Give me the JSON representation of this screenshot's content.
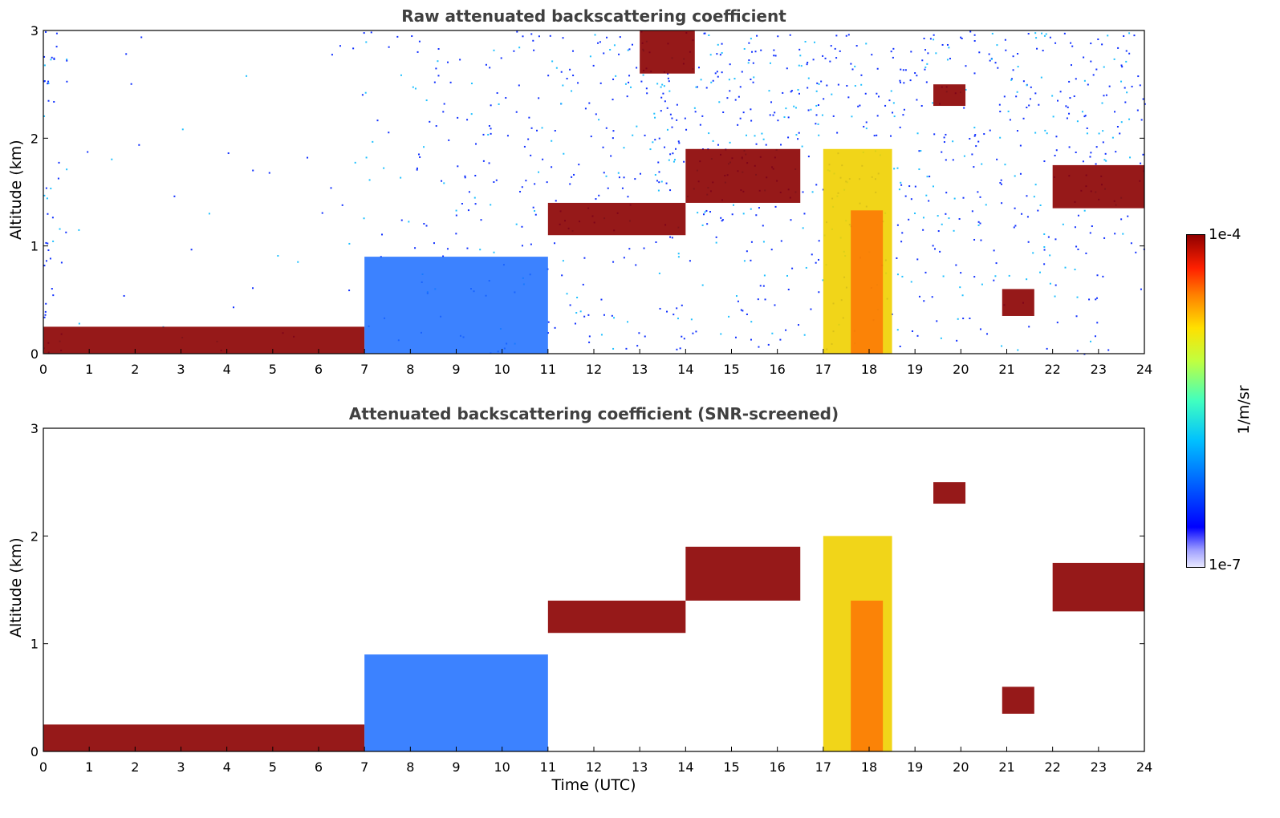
{
  "chart_data": [
    {
      "type": "heatmap",
      "title": "Raw attenuated backscattering coefficient",
      "xlabel": "",
      "ylabel": "Altitude (km)",
      "xlim": [
        0,
        24
      ],
      "ylim": [
        0,
        3
      ],
      "x_ticks": [
        "0",
        "1",
        "2",
        "3",
        "4",
        "5",
        "6",
        "7",
        "8",
        "9",
        "10",
        "11",
        "12",
        "13",
        "14",
        "15",
        "16",
        "17",
        "18",
        "19",
        "20",
        "21",
        "22",
        "23",
        "24"
      ],
      "y_ticks": [
        "0",
        "1",
        "2",
        "3"
      ],
      "features": [
        {
          "name": "boundary-layer",
          "x": [
            0,
            7
          ],
          "y": [
            0,
            0.25
          ],
          "level": "high"
        },
        {
          "name": "elevated-aerosol",
          "x": [
            7,
            11
          ],
          "y": [
            0,
            0.9
          ],
          "level": "medium"
        },
        {
          "name": "cloud-11-14",
          "x": [
            11,
            14
          ],
          "y": [
            1.1,
            1.4
          ],
          "level": "high"
        },
        {
          "name": "cloud-14-16.5",
          "x": [
            14,
            16.5
          ],
          "y": [
            1.4,
            1.9
          ],
          "level": "high"
        },
        {
          "name": "cloud-top-14",
          "x": [
            13,
            14.2
          ],
          "y": [
            2.6,
            3.0
          ],
          "level": "high"
        },
        {
          "name": "precipitation-17-18.5",
          "x": [
            17,
            18.5
          ],
          "y": [
            0,
            1.9
          ],
          "level": "medium-high"
        },
        {
          "name": "cloud-19.5",
          "x": [
            19.4,
            20.1
          ],
          "y": [
            2.3,
            2.5
          ],
          "level": "high"
        },
        {
          "name": "cloud-21",
          "x": [
            20.9,
            21.6
          ],
          "y": [
            0.35,
            0.6
          ],
          "level": "high"
        },
        {
          "name": "cloud-22-24",
          "x": [
            22,
            24
          ],
          "y": [
            1.35,
            1.75
          ],
          "level": "high"
        }
      ]
    },
    {
      "type": "heatmap",
      "title": "Attenuated backscattering coefficient (SNR-screened)",
      "xlabel": "Time (UTC)",
      "ylabel": "Altitude (km)",
      "xlim": [
        0,
        24
      ],
      "ylim": [
        0,
        3
      ],
      "x_ticks": [
        "0",
        "1",
        "2",
        "3",
        "4",
        "5",
        "6",
        "7",
        "8",
        "9",
        "10",
        "11",
        "12",
        "13",
        "14",
        "15",
        "16",
        "17",
        "18",
        "19",
        "20",
        "21",
        "22",
        "23",
        "24"
      ],
      "y_ticks": [
        "0",
        "1",
        "2",
        "3"
      ],
      "features": [
        {
          "name": "boundary-layer",
          "x": [
            0,
            7
          ],
          "y": [
            0,
            0.25
          ],
          "level": "high"
        },
        {
          "name": "elevated-aerosol",
          "x": [
            7,
            11
          ],
          "y": [
            0,
            0.9
          ],
          "level": "medium"
        },
        {
          "name": "cloud-11-14",
          "x": [
            11,
            14
          ],
          "y": [
            1.1,
            1.4
          ],
          "level": "high"
        },
        {
          "name": "cloud-14-16.5",
          "x": [
            14,
            16.5
          ],
          "y": [
            1.4,
            1.9
          ],
          "level": "high"
        },
        {
          "name": "precipitation-17-18.5",
          "x": [
            17,
            18.5
          ],
          "y": [
            0,
            2.0
          ],
          "level": "medium-high"
        },
        {
          "name": "cloud-19.5",
          "x": [
            19.4,
            20.1
          ],
          "y": [
            2.3,
            2.5
          ],
          "level": "high"
        },
        {
          "name": "cloud-21",
          "x": [
            20.9,
            21.6
          ],
          "y": [
            0.35,
            0.6
          ],
          "level": "high"
        },
        {
          "name": "cloud-22-24",
          "x": [
            22,
            24
          ],
          "y": [
            1.3,
            1.75
          ],
          "level": "high"
        }
      ]
    }
  ],
  "colorbar": {
    "max_label": "1e-4",
    "min_label": "1e-7",
    "unit": "1/m/sr",
    "colormap": "jet",
    "scale": "log"
  }
}
